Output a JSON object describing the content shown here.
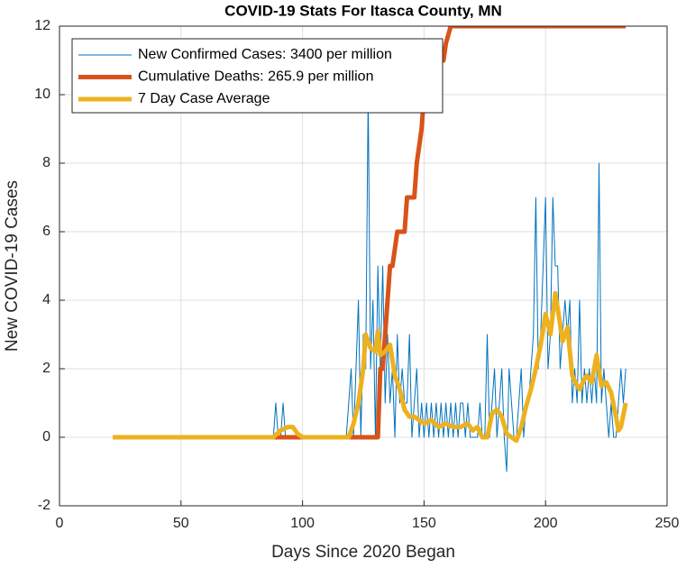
{
  "chart_data": {
    "type": "line",
    "title": "COVID-19 Stats For Itasca County, MN",
    "xlabel": "Days Since 2020 Began",
    "ylabel": "New COVID-19 Cases",
    "xlim": [
      0,
      250
    ],
    "xticks": [
      0,
      50,
      100,
      150,
      200,
      250
    ],
    "ylim": [
      -2,
      12
    ],
    "yticks": [
      -2,
      0,
      2,
      4,
      6,
      8,
      10,
      12
    ],
    "grid": true,
    "legend": "northwest",
    "series": [
      {
        "name": "New Confirmed Cases: 3400 per million",
        "color": "#0072bd",
        "x": [
          22,
          88,
          89,
          90,
          91,
          92,
          93,
          118,
          119,
          120,
          121,
          122,
          123,
          124,
          125,
          126,
          127,
          128,
          129,
          130,
          131,
          132,
          133,
          134,
          135,
          136,
          137,
          138,
          139,
          140,
          141,
          142,
          143,
          144,
          145,
          146,
          147,
          148,
          149,
          150,
          151,
          152,
          153,
          154,
          155,
          156,
          157,
          158,
          159,
          160,
          161,
          162,
          163,
          164,
          165,
          166,
          167,
          168,
          169,
          170,
          171,
          172,
          173,
          174,
          175,
          176,
          177,
          178,
          179,
          180,
          181,
          182,
          183,
          184,
          185,
          186,
          187,
          188,
          189,
          190,
          191,
          192,
          193,
          194,
          195,
          196,
          197,
          198,
          199,
          200,
          201,
          202,
          203,
          204,
          205,
          206,
          207,
          208,
          209,
          210,
          211,
          212,
          213,
          214,
          215,
          216,
          217,
          218,
          219,
          220,
          221,
          222,
          223,
          224,
          225,
          226,
          227,
          228,
          229,
          230,
          231,
          232,
          233
        ],
        "values": [
          0,
          0,
          1,
          0,
          0,
          1,
          0,
          0,
          1,
          2,
          0,
          2,
          4,
          0,
          3,
          2,
          10,
          2,
          4,
          0,
          5,
          2,
          5,
          1,
          3,
          1,
          2,
          0,
          3,
          1,
          2,
          1,
          1,
          3,
          0,
          1,
          2,
          0,
          1,
          0,
          1,
          0,
          1,
          0,
          1,
          0,
          1,
          0,
          1,
          0,
          1,
          0,
          1,
          0,
          1,
          1,
          0,
          1,
          0,
          0,
          0,
          0,
          1,
          0,
          0,
          3,
          0,
          1,
          2,
          0,
          1,
          2,
          0,
          -1,
          2,
          1,
          0,
          0,
          1,
          2,
          0,
          1,
          1,
          2,
          3,
          7,
          2,
          3,
          5,
          7,
          2,
          3,
          7,
          5,
          5,
          2,
          3,
          4,
          3,
          4,
          1,
          2,
          1,
          4,
          1,
          2,
          1,
          2,
          1,
          2,
          1,
          8,
          1,
          2,
          1,
          0,
          1,
          0,
          0,
          1,
          2,
          1,
          2
        ]
      },
      {
        "name": "Cumulative Deaths: 265.9 per million",
        "color": "#d95319",
        "x": [
          22,
          131,
          132,
          133,
          134,
          135,
          136,
          137,
          138,
          139,
          142,
          143,
          146,
          147,
          149,
          150,
          152,
          155,
          158,
          159,
          161,
          162,
          233
        ],
        "values": [
          0,
          0,
          2,
          2,
          3,
          4,
          5,
          5,
          5.5,
          6,
          6,
          7,
          7,
          8,
          9,
          10,
          10.5,
          11,
          11,
          11.5,
          12,
          12,
          12
        ]
      },
      {
        "name": "7 Day Case Average",
        "color": "#edb120",
        "x": [
          22,
          88,
          91,
          94,
          96,
          98,
          100,
          119,
          121,
          123,
          125,
          126,
          128,
          130,
          131,
          132,
          134,
          136,
          138,
          140,
          142,
          144,
          146,
          148,
          150,
          153,
          156,
          159,
          162,
          165,
          168,
          170,
          172,
          174,
          176,
          178,
          180,
          182,
          184,
          186,
          188,
          190,
          192,
          194,
          196,
          198,
          200,
          202,
          204,
          206,
          207,
          209,
          211,
          213,
          214,
          216,
          217,
          219,
          221,
          223,
          225,
          227,
          229,
          230,
          231,
          233
        ],
        "values": [
          0,
          0,
          0.2,
          0.3,
          0.3,
          0.1,
          0,
          0,
          0.4,
          1,
          2,
          3,
          2.6,
          2.5,
          3.1,
          2.4,
          2.5,
          2.7,
          1.8,
          1.4,
          0.8,
          0.6,
          0.6,
          0.5,
          0.4,
          0.5,
          0.3,
          0.4,
          0.3,
          0.3,
          0.4,
          0.2,
          0.3,
          0,
          0,
          0.7,
          0.8,
          0.6,
          0.1,
          0,
          -0.1,
          0.3,
          0.9,
          1.4,
          2,
          2.7,
          3.6,
          3,
          4.2,
          3.3,
          2.8,
          3.2,
          1.8,
          1.5,
          1.4,
          1.7,
          1.8,
          1.6,
          2.4,
          1.5,
          1.6,
          1.3,
          0.6,
          0.2,
          0.3,
          1
        ]
      }
    ]
  }
}
